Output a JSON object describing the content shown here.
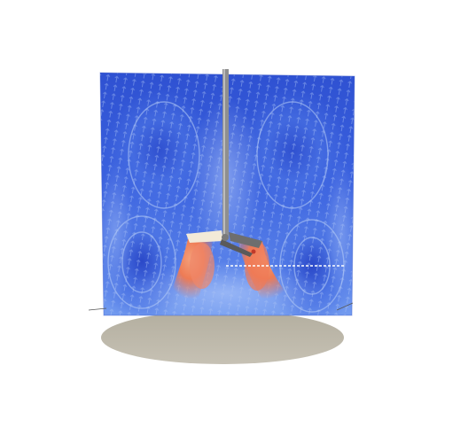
{
  "scene": {
    "colors": {
      "background": "#ffffff",
      "field_low": "#2b52d6",
      "field_mid": "#7fa6f0",
      "field_high": "#f07f5a",
      "tank_base": "#b9b4a9",
      "shaft": "#8f8f8f",
      "blade_light": "#f3ead8",
      "blade_dark": "#6e6e6e",
      "dashed_line": "#ffffff"
    },
    "icons": [
      "impeller-shaft",
      "impeller-blades",
      "vortex-loops"
    ]
  }
}
